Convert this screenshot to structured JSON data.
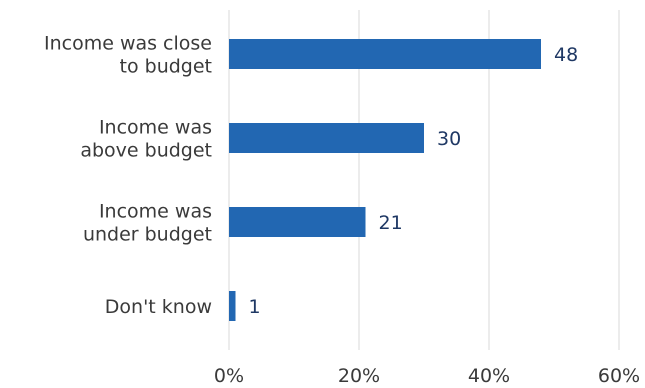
{
  "chart_data": {
    "type": "bar",
    "orientation": "horizontal",
    "title": "",
    "xlabel": "",
    "ylabel": "",
    "categories": [
      [
        "Income was close",
        "to budget"
      ],
      [
        "Income was",
        "above budget"
      ],
      [
        "Income was",
        "under budget"
      ],
      [
        "Don't know"
      ]
    ],
    "values": [
      48,
      30,
      21,
      1
    ],
    "data_labels": [
      "48",
      "30",
      "21",
      "1"
    ],
    "xlim": [
      0,
      60
    ],
    "ticks": [
      0,
      20,
      40,
      60
    ],
    "tick_labels": [
      "0%",
      "20%",
      "40%",
      "60%"
    ],
    "grid": "vertical",
    "legend": "none",
    "bar_color": "#2267b2",
    "value_label_color": "#1f3864",
    "category_label_color": "#3a3a3a"
  }
}
